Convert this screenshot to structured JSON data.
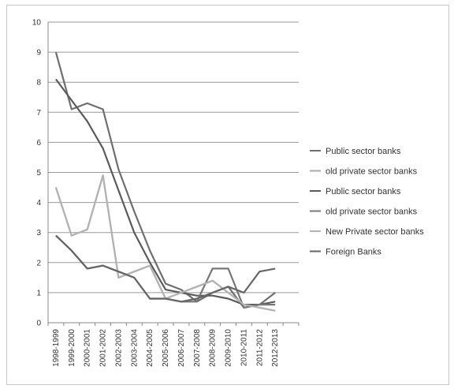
{
  "chart_data": {
    "type": "line",
    "title": "",
    "xlabel": "",
    "ylabel": "",
    "ylim": [
      0,
      10
    ],
    "yticks": [
      0,
      1,
      2,
      3,
      4,
      5,
      6,
      7,
      8,
      9,
      10
    ],
    "categories": [
      "1998-1999",
      "1999-2000",
      "2000-2001",
      "2001-2002",
      "2002-2003",
      "2003-2004",
      "2004-2005",
      "2005-2006",
      "2006-2007",
      "2007-2008",
      "2008-2009",
      "2009-2010",
      "2010-2011",
      "2011-2012",
      "2012-2013"
    ],
    "grid": "horizontal",
    "legend_position": "right",
    "series": [
      {
        "name": "Public sector banks",
        "color": "#6f6f6f",
        "values": [
          9.0,
          7.1,
          7.3,
          7.1,
          5.1,
          3.7,
          2.4,
          1.3,
          1.1,
          0.7,
          1.0,
          1.2,
          0.5,
          0.6,
          1.0
        ]
      },
      {
        "name": "old private sector banks",
        "color": "#a9a9a9",
        "values": [
          4.5,
          2.9,
          3.1,
          4.9,
          1.5,
          1.7,
          1.9,
          0.8,
          1.0,
          1.2,
          1.4,
          1.0,
          0.6,
          0.5,
          0.4
        ]
      },
      {
        "name": "Public sector banks",
        "color": "#5b5b5b",
        "values": [
          8.1,
          7.4,
          6.7,
          5.8,
          4.4,
          3.0,
          2.0,
          1.1,
          1.0,
          0.9,
          0.9,
          0.8,
          0.6,
          0.6,
          0.7
        ]
      },
      {
        "name": "old private sector banks",
        "color": "#777777",
        "values": [
          2.9,
          2.4,
          1.8,
          1.9,
          1.7,
          1.5,
          0.8,
          0.8,
          0.7,
          0.7,
          1.8,
          1.8,
          0.5,
          0.6,
          0.6
        ]
      },
      {
        "name": "New Private sector banks",
        "color": "#b3b3b3",
        "values": [
          4.5,
          2.9,
          3.1,
          4.9,
          1.5,
          1.7,
          1.9,
          0.8,
          1.0,
          1.2,
          1.4,
          1.0,
          0.6,
          0.5,
          0.4
        ]
      },
      {
        "name": "Foreign Banks",
        "color": "#666666",
        "values": [
          2.9,
          2.4,
          1.8,
          1.9,
          1.7,
          1.5,
          0.8,
          0.8,
          0.7,
          0.8,
          1.0,
          1.2,
          1.0,
          1.7,
          1.8
        ]
      }
    ]
  }
}
